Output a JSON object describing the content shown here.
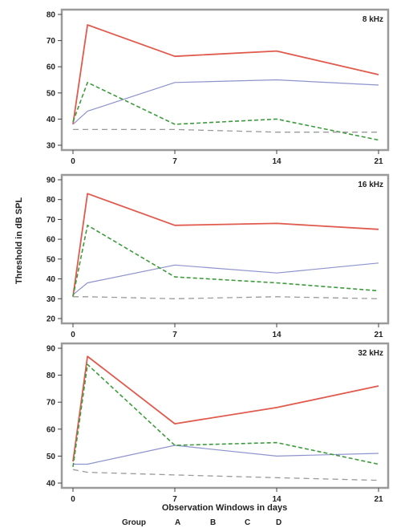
{
  "figure": {
    "ylabel": "Threshold in dB SPL",
    "xlabel": "Observation Windows in days",
    "legend_title": "Group",
    "legend_entries": [
      "A",
      "B",
      "C",
      "D"
    ],
    "series_colors": {
      "A": "#e05a4e",
      "B": "#8d93cc",
      "C": "#3d9b3d",
      "D": "#9a9a9a"
    }
  },
  "chart_data": [
    {
      "type": "line",
      "title": "8 kHz",
      "x": [
        0,
        1,
        7,
        14,
        21
      ],
      "x_ticks": [
        0,
        7,
        14,
        21
      ],
      "xlim": [
        0,
        21
      ],
      "ylim": [
        30,
        80
      ],
      "y_ticks": [
        30,
        40,
        50,
        60,
        70,
        80
      ],
      "series": [
        {
          "values": [
            38,
            76,
            64,
            66,
            57
          ]
        },
        {
          "values": [
            38,
            43,
            54,
            55,
            53
          ]
        },
        {
          "values": [
            39,
            54,
            38,
            40,
            32
          ]
        },
        {
          "values": [
            36,
            36,
            36,
            35,
            35
          ]
        }
      ]
    },
    {
      "type": "line",
      "title": "16 kHz",
      "x": [
        0,
        1,
        7,
        14,
        21
      ],
      "x_ticks": [
        0,
        7,
        14,
        21
      ],
      "xlim": [
        0,
        21
      ],
      "ylim": [
        20,
        90
      ],
      "y_ticks": [
        20,
        30,
        40,
        50,
        60,
        70,
        80,
        90
      ],
      "series": [
        {
          "values": [
            31,
            83,
            67,
            68,
            65
          ]
        },
        {
          "values": [
            32,
            38,
            47,
            43,
            48
          ]
        },
        {
          "values": [
            31,
            67,
            41,
            38,
            34
          ]
        },
        {
          "values": [
            31,
            31,
            30,
            31,
            30
          ]
        }
      ]
    },
    {
      "type": "line",
      "title": "32 kHz",
      "x": [
        0,
        1,
        7,
        14,
        21
      ],
      "x_ticks": [
        0,
        7,
        14,
        21
      ],
      "xlim": [
        0,
        21
      ],
      "ylim": [
        40,
        90
      ],
      "y_ticks": [
        40,
        50,
        60,
        70,
        80,
        90
      ],
      "series": [
        {
          "values": [
            48,
            87,
            62,
            68,
            76
          ]
        },
        {
          "values": [
            47,
            47,
            54,
            50,
            51
          ]
        },
        {
          "values": [
            46,
            84,
            54,
            55,
            47
          ]
        },
        {
          "values": [
            45,
            44,
            43,
            42,
            41
          ]
        }
      ]
    }
  ]
}
